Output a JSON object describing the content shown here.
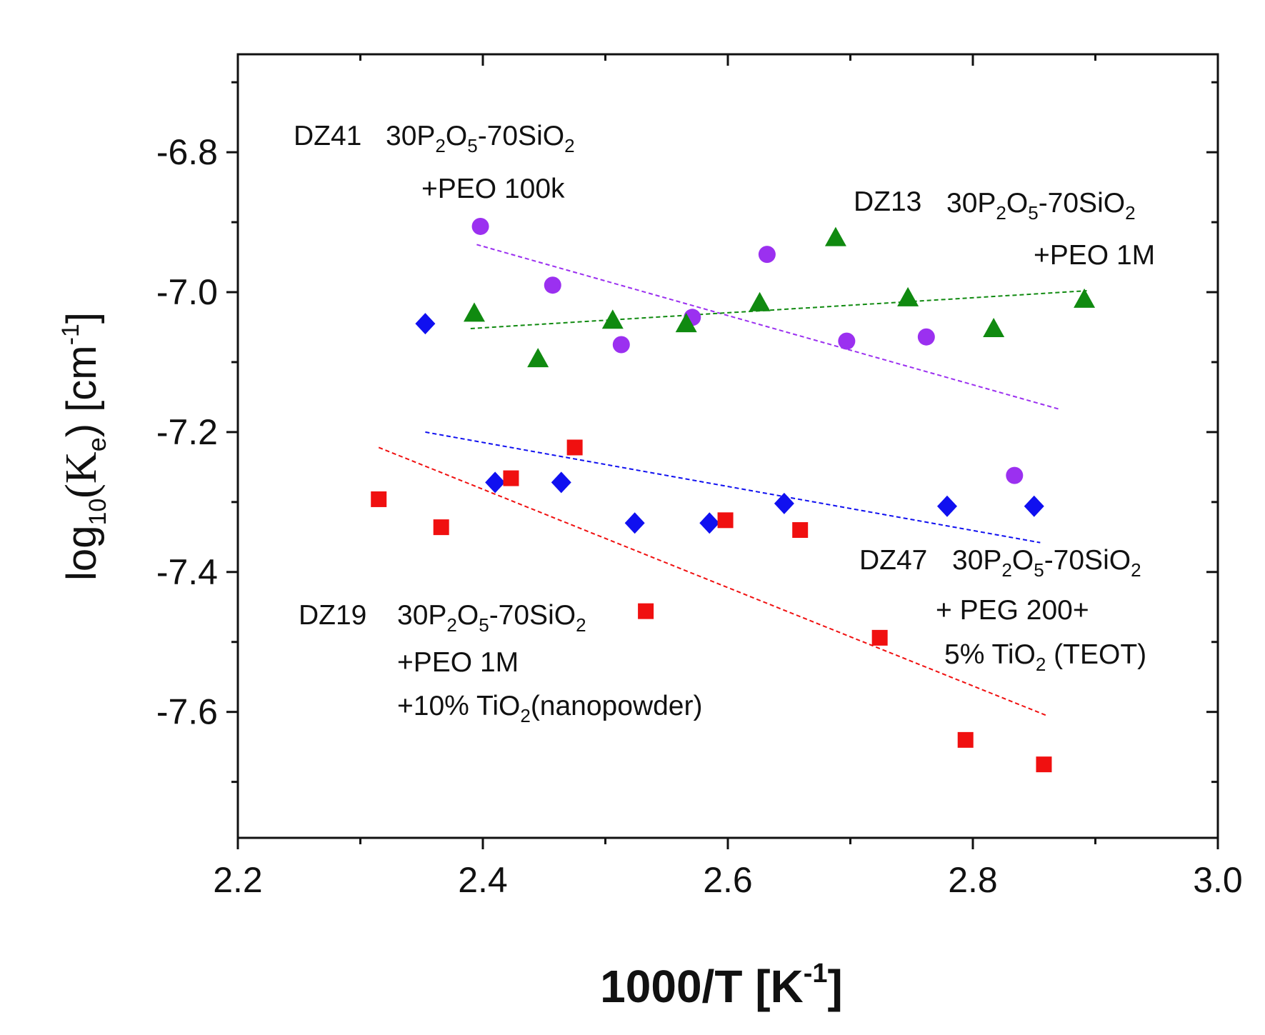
{
  "chart_data": {
    "type": "scatter",
    "xlabel": {
      "main": "1000/T [K",
      "sup": "-1",
      "close": "]"
    },
    "ylabel": {
      "pre": "log",
      "sub": "10",
      "mid": "(K",
      "sub2": "e",
      "post": ")  [cm",
      "sup": "-1",
      "close": "]"
    },
    "xlim": [
      2.2,
      3.0
    ],
    "ylim": [
      -7.78,
      -6.66
    ],
    "xticks": [
      "2.2",
      "2.4",
      "2.6",
      "2.8",
      "3.0"
    ],
    "xtick_values": [
      2.2,
      2.4,
      2.6,
      2.8,
      3.0
    ],
    "yticks": [
      "-6.8",
      "-7.0",
      "-7.2",
      "-7.4",
      "-7.6"
    ],
    "ytick_values": [
      -6.8,
      -7.0,
      -7.2,
      -7.4,
      -7.6
    ],
    "series": [
      {
        "name": "DZ41",
        "marker": "circle",
        "color": "#9b30f0",
        "points": [
          [
            2.398,
            -6.906
          ],
          [
            2.457,
            -6.99
          ],
          [
            2.513,
            -7.075
          ],
          [
            2.571,
            -7.036
          ],
          [
            2.632,
            -6.946
          ],
          [
            2.697,
            -7.07
          ],
          [
            2.762,
            -7.064
          ],
          [
            2.834,
            -7.262
          ]
        ],
        "fit": [
          [
            2.395,
            -6.932
          ],
          [
            2.87,
            -7.167
          ]
        ],
        "label": "DZ41",
        "composition": {
          "a": "30P",
          "b": "2",
          "c": "O",
          "d": "5",
          "e": "-70SiO",
          "f": "2"
        },
        "extra": [
          "+PEO 100k"
        ]
      },
      {
        "name": "DZ13",
        "marker": "triangle",
        "color": "#108a10",
        "points": [
          [
            2.393,
            -7.03
          ],
          [
            2.445,
            -7.095
          ],
          [
            2.506,
            -7.04
          ],
          [
            2.566,
            -7.045
          ],
          [
            2.626,
            -7.015
          ],
          [
            2.688,
            -6.922
          ],
          [
            2.747,
            -7.008
          ],
          [
            2.817,
            -7.052
          ],
          [
            2.891,
            -7.01
          ]
        ],
        "fit": [
          [
            2.39,
            -7.052
          ],
          [
            2.893,
            -6.998
          ]
        ],
        "label": "DZ13",
        "composition": {
          "a": "30P",
          "b": "2",
          "c": "O",
          "d": "5",
          "e": "-70SiO",
          "f": "2"
        },
        "extra": [
          "+PEO 1M"
        ]
      },
      {
        "name": "DZ47",
        "marker": "diamond",
        "color": "#1010f0",
        "points": [
          [
            2.353,
            -7.045
          ],
          [
            2.41,
            -7.272
          ],
          [
            2.464,
            -7.272
          ],
          [
            2.524,
            -7.33
          ],
          [
            2.585,
            -7.33
          ],
          [
            2.646,
            -7.302
          ],
          [
            2.779,
            -7.306
          ],
          [
            2.85,
            -7.306
          ]
        ],
        "fit": [
          [
            2.353,
            -7.2
          ],
          [
            2.855,
            -7.358
          ]
        ],
        "label": "DZ47",
        "composition": {
          "a": "30P",
          "b": "2",
          "c": "O",
          "d": "5",
          "e": "-70SiO",
          "f": "2"
        },
        "extra": [
          "+ PEG 200+"
        ],
        "extra2": {
          "pre": "5% TiO",
          "sub": "2",
          "post": " (TEOT)"
        }
      },
      {
        "name": "DZ19",
        "marker": "square",
        "color": "#f01010",
        "points": [
          [
            2.315,
            -7.296
          ],
          [
            2.366,
            -7.336
          ],
          [
            2.423,
            -7.266
          ],
          [
            2.475,
            -7.222
          ],
          [
            2.533,
            -7.456
          ],
          [
            2.598,
            -7.326
          ],
          [
            2.659,
            -7.34
          ],
          [
            2.724,
            -7.494
          ],
          [
            2.794,
            -7.64
          ],
          [
            2.858,
            -7.675
          ]
        ],
        "fit": [
          [
            2.315,
            -7.222
          ],
          [
            2.86,
            -7.605
          ]
        ],
        "label": "DZ19",
        "composition": {
          "a": "30P",
          "b": "2",
          "c": "O",
          "d": "5",
          "e": "-70SiO",
          "f": "2"
        },
        "extra": [
          "+PEO 1M"
        ],
        "extra2": {
          "pre": "+10% TiO",
          "sub": "2",
          "post": "(nanopowder)"
        }
      }
    ]
  }
}
